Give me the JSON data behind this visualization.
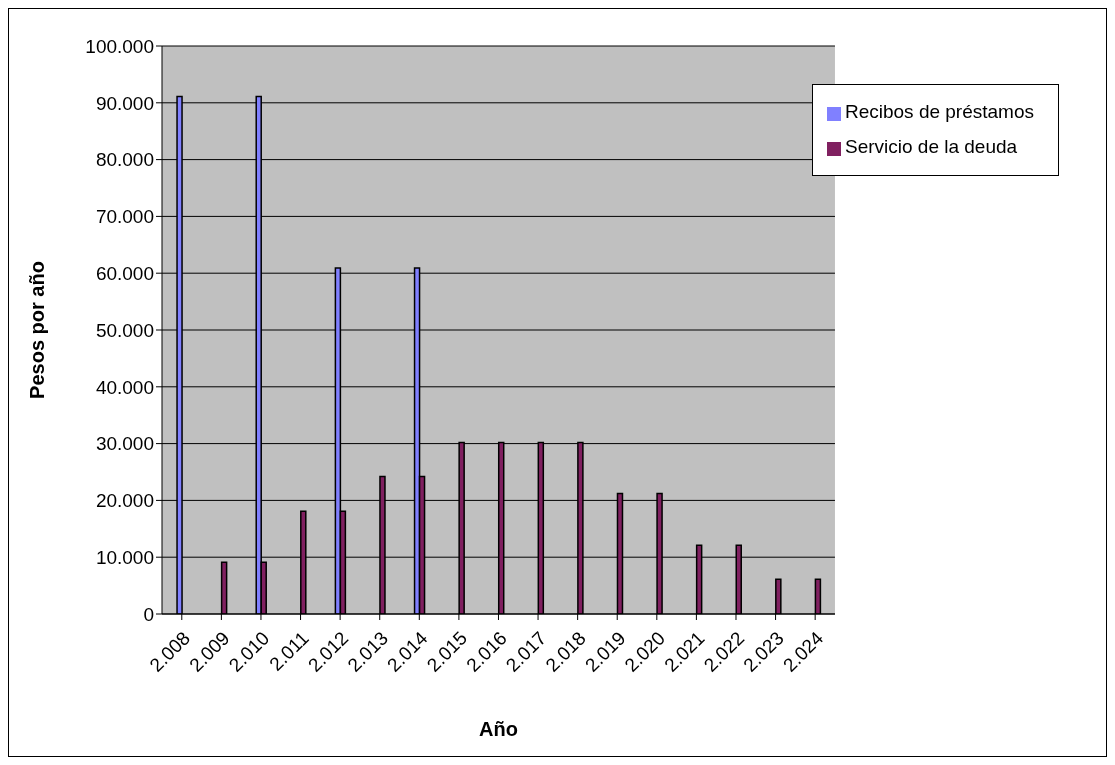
{
  "chart_data": {
    "type": "bar",
    "xlabel": "Año",
    "ylabel": "Pesos por año",
    "categories": [
      "2.008",
      "2.009",
      "2.010",
      "2.011",
      "2.012",
      "2.013",
      "2.014",
      "2.015",
      "2.016",
      "2.017",
      "2.018",
      "2.019",
      "2.020",
      "2.021",
      "2.022",
      "2.023",
      "2.024"
    ],
    "series": [
      {
        "name": "Recibos de préstamos",
        "color": "#8080ff",
        "values": [
          91100,
          null,
          91100,
          null,
          60900,
          null,
          60900,
          null,
          null,
          null,
          null,
          null,
          null,
          null,
          null,
          null,
          null
        ]
      },
      {
        "name": "Servicio de la deuda",
        "color": "#802060",
        "values": [
          null,
          9100,
          9100,
          18100,
          18100,
          24200,
          24200,
          30200,
          30200,
          30200,
          30200,
          21200,
          21200,
          12100,
          12100,
          6100,
          6100
        ]
      }
    ],
    "ylim": [
      0,
      100000
    ],
    "yticks": [
      0,
      {
        "value": 10000,
        "label": "10.000"
      },
      {
        "value": 20000,
        "label": "20.000"
      },
      {
        "value": 30000,
        "label": "30.000"
      },
      {
        "value": 40000,
        "label": "40.000"
      },
      {
        "value": 50000,
        "label": "50.000"
      },
      {
        "value": 60000,
        "label": "60.000"
      },
      {
        "value": 70000,
        "label": "70.000"
      },
      {
        "value": 80000,
        "label": "80.000"
      },
      {
        "value": 90000,
        "label": "90.000"
      },
      {
        "value": 100000,
        "label": "100.000"
      }
    ],
    "grid": "y",
    "legend": "top right"
  }
}
